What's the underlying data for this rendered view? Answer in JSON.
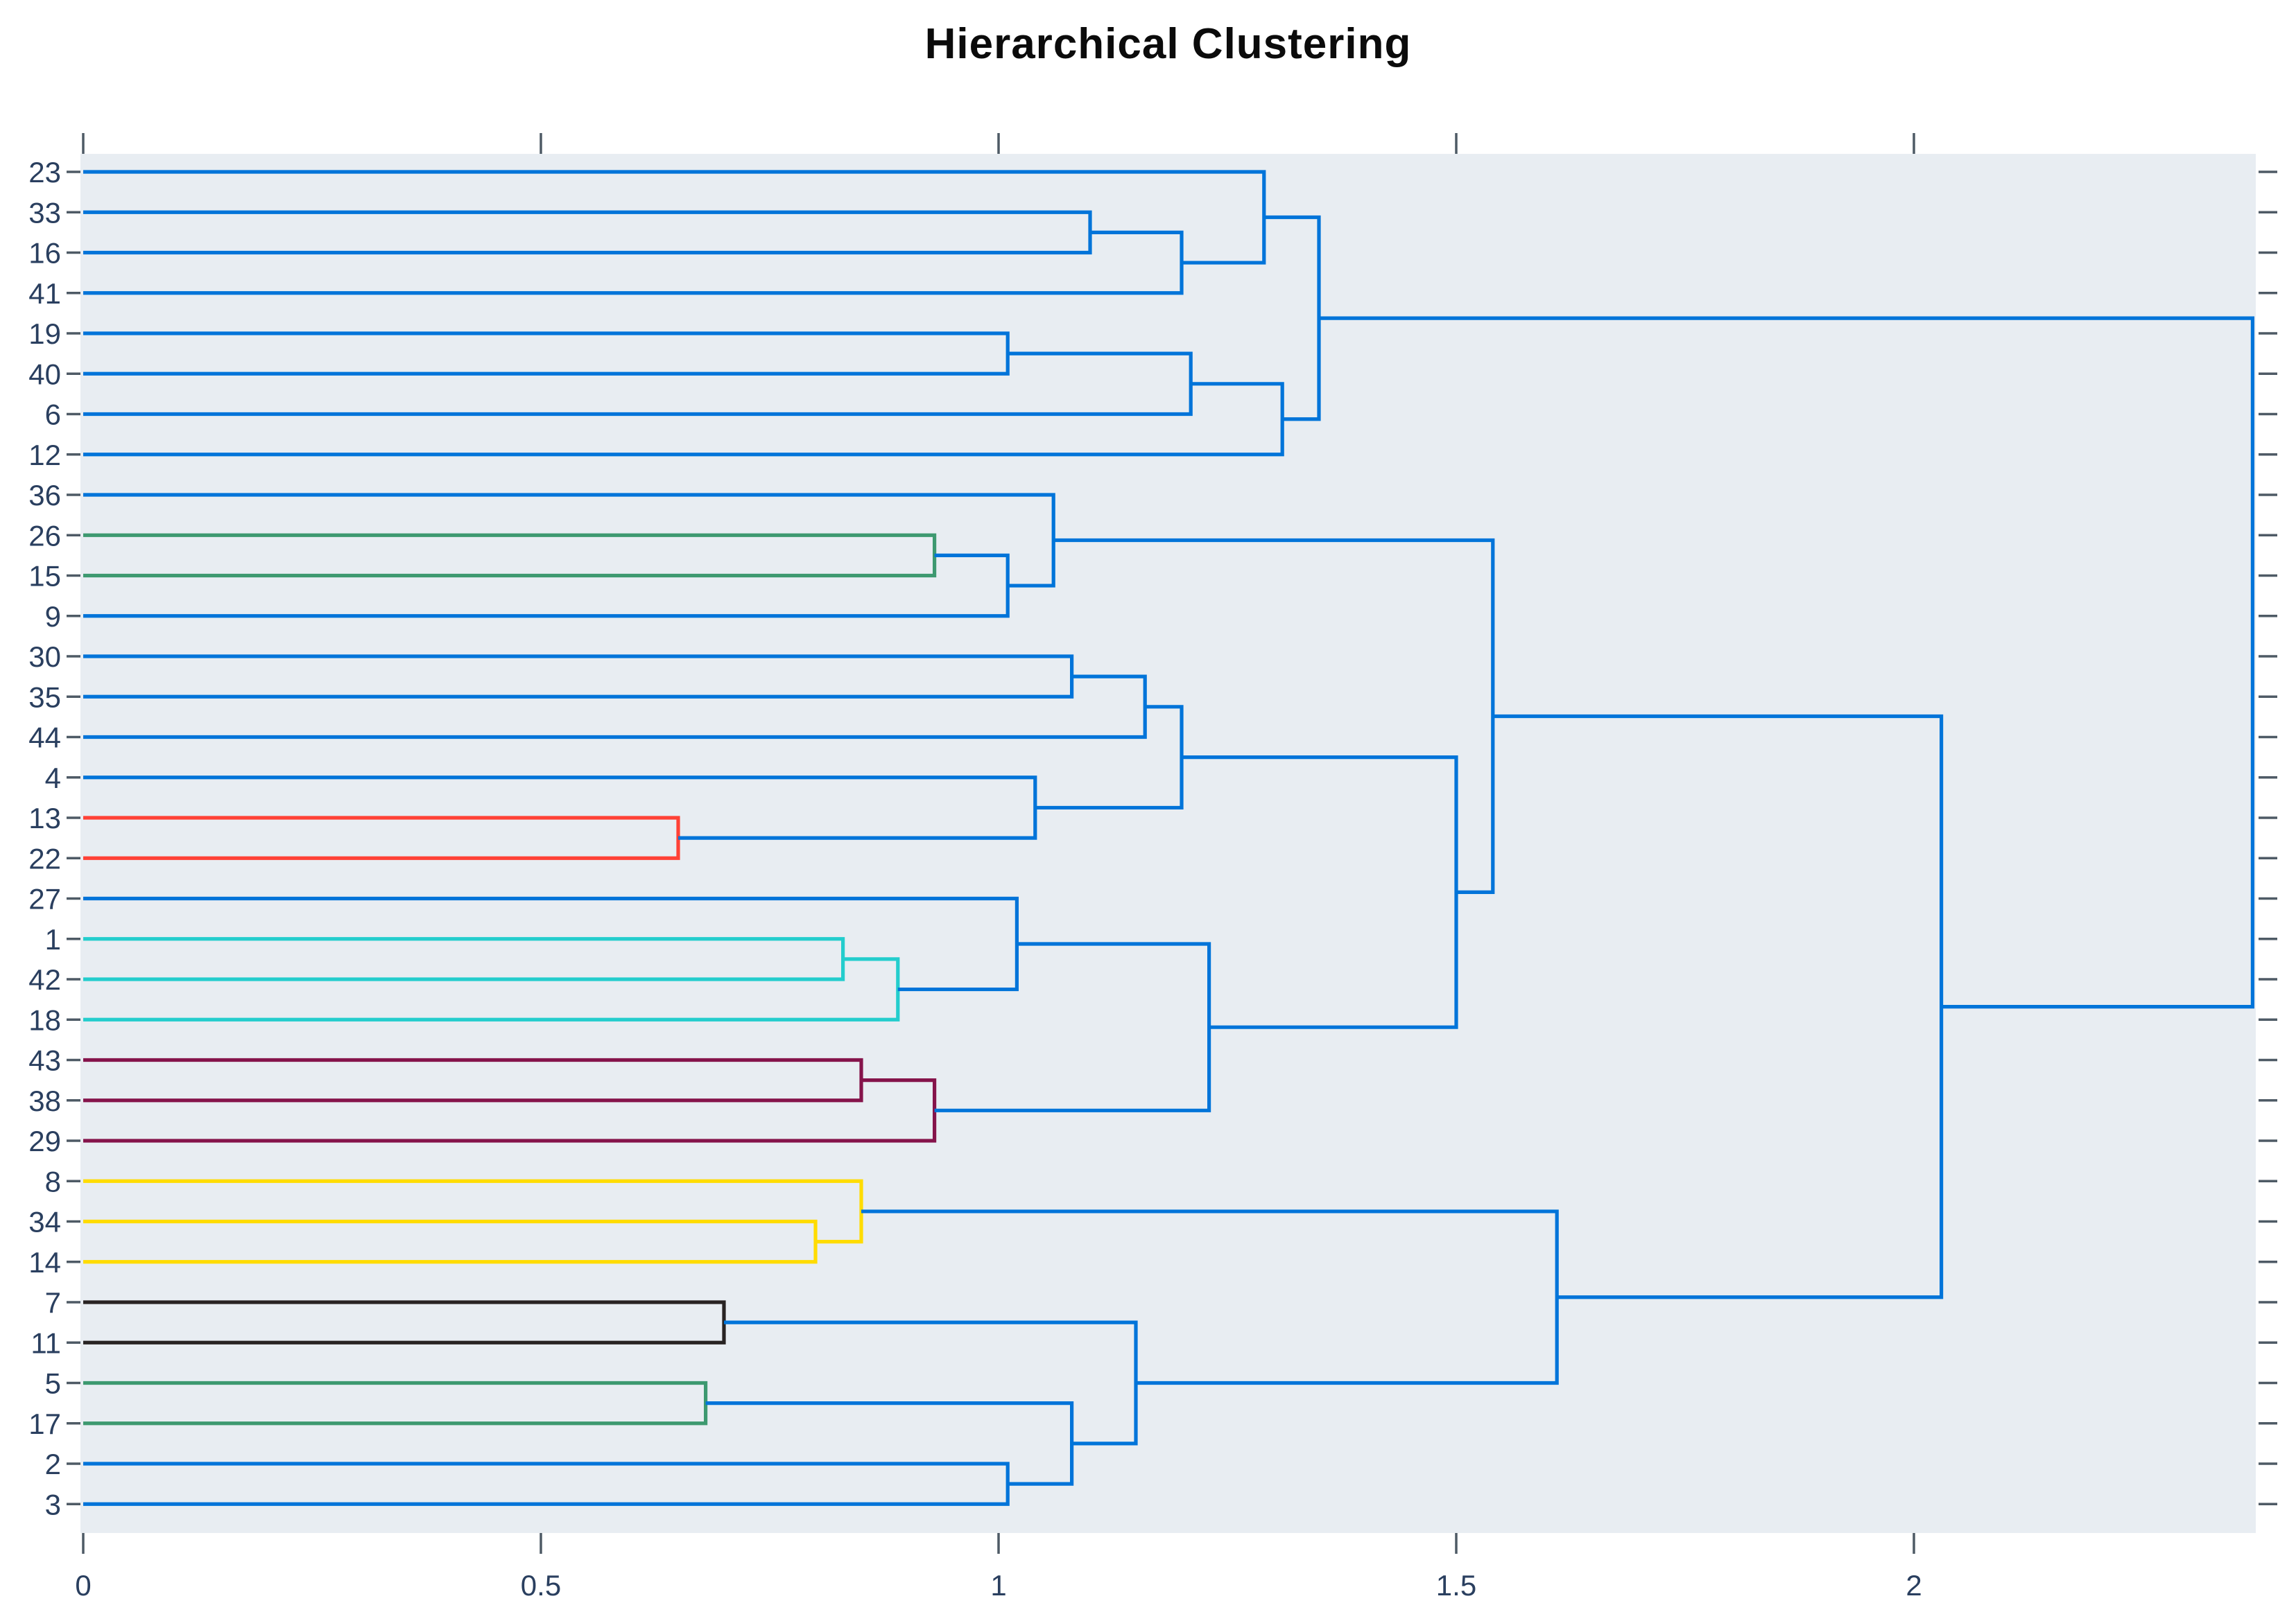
{
  "title": "Hierarchical Clustering",
  "colors": {
    "background": "#E8EDF2",
    "paper": "#FFFFFF",
    "text": "#2A3F5F",
    "title_text": "#0B0B0B",
    "tick": "#4E5A65",
    "palette": {
      "blue": "#0074D9",
      "cyan": "#23CDCD",
      "green": "#3D9970",
      "black": "#282323",
      "maroon": "#85144B",
      "red": "#FF4136",
      "yellow": "#FFDC00"
    }
  },
  "x_axis": {
    "ticks": [
      0,
      0.5,
      1,
      1.5,
      2
    ],
    "tick_labels": [
      "0",
      "0.5",
      "1",
      "1.5",
      "2"
    ],
    "range": [
      0,
      2.373
    ],
    "mirrored_top_ticks": true
  },
  "y_axis": {
    "mirrored_right_ticks": true
  },
  "chart_data": {
    "type": "dendrogram",
    "title": "Hierarchical Clustering",
    "orientation": "left-to-right",
    "legend": "none",
    "grid": false,
    "leaves": [
      "23",
      "33",
      "16",
      "41",
      "19",
      "40",
      "6",
      "12",
      "36",
      "26",
      "15",
      "9",
      "30",
      "35",
      "44",
      "4",
      "13",
      "22",
      "27",
      "1",
      "42",
      "18",
      "43",
      "38",
      "29",
      "8",
      "34",
      "14",
      "7",
      "11",
      "5",
      "17",
      "2",
      "3"
    ],
    "linkage": [
      {
        "id": "n1",
        "a": "33",
        "b": "16",
        "h": 1.1,
        "color": "blue"
      },
      {
        "id": "n2",
        "a": "n1",
        "b": "41",
        "h": 1.2,
        "color": "blue"
      },
      {
        "id": "n3",
        "a": "23",
        "b": "n2",
        "h": 1.29,
        "color": "blue"
      },
      {
        "id": "n4",
        "a": "19",
        "b": "40",
        "h": 1.01,
        "color": "blue"
      },
      {
        "id": "n5",
        "a": "n4",
        "b": "6",
        "h": 1.21,
        "color": "blue"
      },
      {
        "id": "n6",
        "a": "n5",
        "b": "12",
        "h": 1.31,
        "color": "blue"
      },
      {
        "id": "n7",
        "a": "n3",
        "b": "n6",
        "h": 1.35,
        "color": "blue"
      },
      {
        "id": "n8",
        "a": "26",
        "b": "15",
        "h": 0.93,
        "color": "green"
      },
      {
        "id": "n9",
        "a": "n8",
        "b": "9",
        "h": 1.01,
        "color": "blue"
      },
      {
        "id": "n10",
        "a": "36",
        "b": "n9",
        "h": 1.06,
        "color": "blue"
      },
      {
        "id": "n11",
        "a": "30",
        "b": "35",
        "h": 1.08,
        "color": "blue"
      },
      {
        "id": "n12",
        "a": "n11",
        "b": "44",
        "h": 1.16,
        "color": "blue"
      },
      {
        "id": "n13",
        "a": "13",
        "b": "22",
        "h": 0.65,
        "color": "red"
      },
      {
        "id": "n14",
        "a": "4",
        "b": "n13",
        "h": 1.04,
        "color": "blue"
      },
      {
        "id": "n15",
        "a": "n12",
        "b": "n14",
        "h": 1.2,
        "color": "blue"
      },
      {
        "id": "n16",
        "a": "1",
        "b": "42",
        "h": 0.83,
        "color": "cyan"
      },
      {
        "id": "n17",
        "a": "n16",
        "b": "18",
        "h": 0.89,
        "color": "cyan"
      },
      {
        "id": "n18",
        "a": "27",
        "b": "n17",
        "h": 1.02,
        "color": "blue"
      },
      {
        "id": "n19",
        "a": "43",
        "b": "38",
        "h": 0.85,
        "color": "maroon"
      },
      {
        "id": "n20",
        "a": "n19",
        "b": "29",
        "h": 0.93,
        "color": "maroon"
      },
      {
        "id": "n21",
        "a": "n18",
        "b": "n20",
        "h": 1.23,
        "color": "blue"
      },
      {
        "id": "n22",
        "a": "n15",
        "b": "n21",
        "h": 1.5,
        "color": "blue"
      },
      {
        "id": "n23",
        "a": "n10",
        "b": "n22",
        "h": 1.54,
        "color": "blue"
      },
      {
        "id": "n24",
        "a": "34",
        "b": "14",
        "h": 0.8,
        "color": "yellow"
      },
      {
        "id": "n25",
        "a": "8",
        "b": "n24",
        "h": 0.85,
        "color": "yellow"
      },
      {
        "id": "n26",
        "a": "7",
        "b": "11",
        "h": 0.7,
        "color": "black"
      },
      {
        "id": "n27",
        "a": "5",
        "b": "17",
        "h": 0.68,
        "color": "green"
      },
      {
        "id": "n28",
        "a": "2",
        "b": "3",
        "h": 1.01,
        "color": "blue"
      },
      {
        "id": "n29",
        "a": "n27",
        "b": "n28",
        "h": 1.08,
        "color": "blue"
      },
      {
        "id": "n30",
        "a": "n26",
        "b": "n29",
        "h": 1.15,
        "color": "blue"
      },
      {
        "id": "n31",
        "a": "n25",
        "b": "n30",
        "h": 1.61,
        "color": "blue"
      },
      {
        "id": "n32",
        "a": "n23",
        "b": "n31",
        "h": 2.03,
        "color": "blue"
      },
      {
        "id": "root",
        "a": "n7",
        "b": "n32",
        "h": 2.37,
        "color": "blue"
      }
    ],
    "tree": {
      "h": 2.37,
      "color": "blue",
      "children": [
        {
          "h": 1.35,
          "color": "blue",
          "children": [
            {
              "h": 1.29,
              "color": "blue",
              "children": [
                {
                  "leaf": "23"
                },
                {
                  "h": 1.2,
                  "color": "blue",
                  "children": [
                    {
                      "h": 1.1,
                      "color": "blue",
                      "children": [
                        {
                          "leaf": "33"
                        },
                        {
                          "leaf": "16"
                        }
                      ]
                    },
                    {
                      "leaf": "41"
                    }
                  ]
                }
              ]
            },
            {
              "h": 1.31,
              "color": "blue",
              "children": [
                {
                  "h": 1.21,
                  "color": "blue",
                  "children": [
                    {
                      "h": 1.01,
                      "color": "blue",
                      "children": [
                        {
                          "leaf": "19"
                        },
                        {
                          "leaf": "40"
                        }
                      ]
                    },
                    {
                      "leaf": "6"
                    }
                  ]
                },
                {
                  "leaf": "12"
                }
              ]
            }
          ]
        },
        {
          "h": 2.03,
          "color": "blue",
          "children": [
            {
              "h": 1.54,
              "color": "blue",
              "children": [
                {
                  "h": 1.06,
                  "color": "blue",
                  "children": [
                    {
                      "leaf": "36"
                    },
                    {
                      "h": 1.01,
                      "color": "blue",
                      "children": [
                        {
                          "h": 0.93,
                          "color": "green",
                          "children": [
                            {
                              "leaf": "26"
                            },
                            {
                              "leaf": "15"
                            }
                          ]
                        },
                        {
                          "leaf": "9"
                        }
                      ]
                    }
                  ]
                },
                {
                  "h": 1.5,
                  "color": "blue",
                  "children": [
                    {
                      "h": 1.2,
                      "color": "blue",
                      "children": [
                        {
                          "h": 1.16,
                          "color": "blue",
                          "children": [
                            {
                              "h": 1.08,
                              "color": "blue",
                              "children": [
                                {
                                  "leaf": "30"
                                },
                                {
                                  "leaf": "35"
                                }
                              ]
                            },
                            {
                              "leaf": "44"
                            }
                          ]
                        },
                        {
                          "h": 1.04,
                          "color": "blue",
                          "children": [
                            {
                              "leaf": "4"
                            },
                            {
                              "h": 0.65,
                              "color": "red",
                              "children": [
                                {
                                  "leaf": "13"
                                },
                                {
                                  "leaf": "22"
                                }
                              ]
                            }
                          ]
                        }
                      ]
                    },
                    {
                      "h": 1.23,
                      "color": "blue",
                      "children": [
                        {
                          "h": 1.02,
                          "color": "blue",
                          "children": [
                            {
                              "leaf": "27"
                            },
                            {
                              "h": 0.89,
                              "color": "cyan",
                              "children": [
                                {
                                  "h": 0.83,
                                  "color": "cyan",
                                  "children": [
                                    {
                                      "leaf": "1"
                                    },
                                    {
                                      "leaf": "42"
                                    }
                                  ]
                                },
                                {
                                  "leaf": "18"
                                }
                              ]
                            }
                          ]
                        },
                        {
                          "h": 0.93,
                          "color": "maroon",
                          "children": [
                            {
                              "h": 0.85,
                              "color": "maroon",
                              "children": [
                                {
                                  "leaf": "43"
                                },
                                {
                                  "leaf": "38"
                                }
                              ]
                            },
                            {
                              "leaf": "29"
                            }
                          ]
                        }
                      ]
                    }
                  ]
                }
              ]
            },
            {
              "h": 1.61,
              "color": "blue",
              "children": [
                {
                  "h": 0.85,
                  "color": "yellow",
                  "children": [
                    {
                      "leaf": "8"
                    },
                    {
                      "h": 0.8,
                      "color": "yellow",
                      "children": [
                        {
                          "leaf": "34"
                        },
                        {
                          "leaf": "14"
                        }
                      ]
                    }
                  ]
                },
                {
                  "h": 1.15,
                  "color": "blue",
                  "children": [
                    {
                      "h": 0.7,
                      "color": "black",
                      "children": [
                        {
                          "leaf": "7"
                        },
                        {
                          "leaf": "11"
                        }
                      ]
                    },
                    {
                      "h": 1.08,
                      "color": "blue",
                      "children": [
                        {
                          "h": 0.68,
                          "color": "green",
                          "children": [
                            {
                              "leaf": "5"
                            },
                            {
                              "leaf": "17"
                            }
                          ]
                        },
                        {
                          "h": 1.01,
                          "color": "blue",
                          "children": [
                            {
                              "leaf": "2"
                            },
                            {
                              "leaf": "3"
                            }
                          ]
                        }
                      ]
                    }
                  ]
                }
              ]
            }
          ]
        }
      ]
    }
  }
}
